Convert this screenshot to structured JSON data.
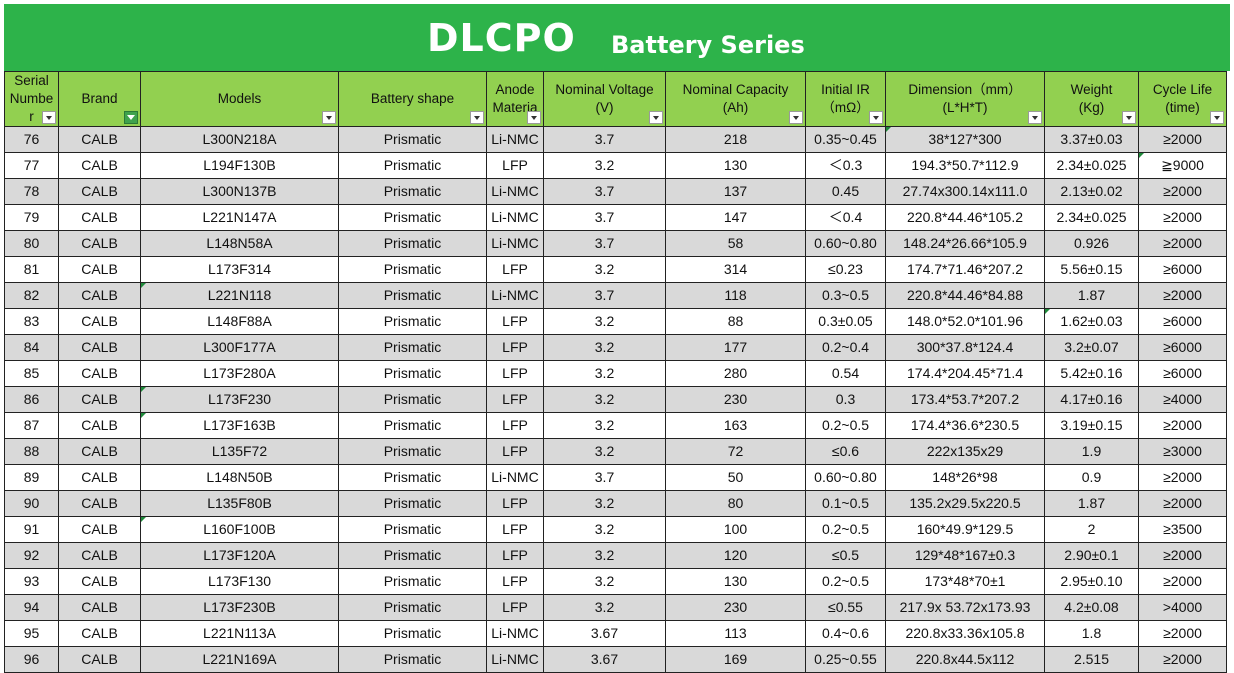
{
  "title": {
    "main": "DLCPO",
    "sub": "Battery Series"
  },
  "headers": [
    {
      "key": "serial",
      "label": "Serial Numbe r"
    },
    {
      "key": "brand",
      "label": "Brand"
    },
    {
      "key": "model",
      "label": "Models"
    },
    {
      "key": "shape",
      "label": "Battery shape"
    },
    {
      "key": "anode",
      "label": "Anode Materia"
    },
    {
      "key": "voltage",
      "label": "Nominal Voltage (V)"
    },
    {
      "key": "capacity",
      "label": "Nominal Capacity (Ah)"
    },
    {
      "key": "ir",
      "label": "Initial IR （mΩ）"
    },
    {
      "key": "dimension",
      "label": "Dimension（mm） (L*H*T)"
    },
    {
      "key": "weight",
      "label": "Weight (Kg)"
    },
    {
      "key": "cycle",
      "label": "Cycle Life (time)"
    }
  ],
  "rows": [
    [
      "76",
      "CALB",
      "L300N218A",
      "Prismatic",
      "Li-NMC",
      "3.7",
      "218",
      "0.35~0.45",
      "38*127*300",
      "3.37±0.03",
      "≥2000"
    ],
    [
      "77",
      "CALB",
      "L194F130B",
      "Prismatic",
      "LFP",
      "3.2",
      "130",
      "＜0.3",
      "194.3*50.7*112.9",
      "2.34±0.025",
      "≧9000"
    ],
    [
      "78",
      "CALB",
      "L300N137B",
      "Prismatic",
      "Li-NMC",
      "3.7",
      "137",
      "0.45",
      "27.74x300.14x111.0",
      "2.13±0.02",
      "≥2000"
    ],
    [
      "79",
      "CALB",
      "L221N147A",
      "Prismatic",
      "Li-NMC",
      "3.7",
      "147",
      "＜0.4",
      "220.8*44.46*105.2",
      "2.34±0.025",
      "≥2000"
    ],
    [
      "80",
      "CALB",
      "L148N58A",
      "Prismatic",
      "Li-NMC",
      "3.7",
      "58",
      "0.60~0.80",
      "148.24*26.66*105.9",
      "0.926",
      "≥2000"
    ],
    [
      "81",
      "CALB",
      "L173F314",
      "Prismatic",
      "LFP",
      "3.2",
      "314",
      "≤0.23",
      "174.7*71.46*207.2",
      "5.56±0.15",
      "≥6000"
    ],
    [
      "82",
      "CALB",
      "L221N118",
      "Prismatic",
      "Li-NMC",
      "3.7",
      "118",
      "0.3~0.5",
      "220.8*44.46*84.88",
      "1.87",
      "≥2000"
    ],
    [
      "83",
      "CALB",
      "L148F88A",
      "Prismatic",
      "LFP",
      "3.2",
      "88",
      "0.3±0.05",
      "148.0*52.0*101.96",
      "1.62±0.03",
      "≥6000"
    ],
    [
      "84",
      "CALB",
      "L300F177A",
      "Prismatic",
      "LFP",
      "3.2",
      "177",
      "0.2~0.4",
      "300*37.8*124.4",
      "3.2±0.07",
      "≥6000"
    ],
    [
      "85",
      "CALB",
      "L173F280A",
      "Prismatic",
      "LFP",
      "3.2",
      "280",
      "0.54",
      "174.4*204.45*71.4",
      "5.42±0.16",
      "≥6000"
    ],
    [
      "86",
      "CALB",
      "L173F230",
      "Prismatic",
      "LFP",
      "3.2",
      "230",
      "0.3",
      "173.4*53.7*207.2",
      "4.17±0.16",
      "≥4000"
    ],
    [
      "87",
      "CALB",
      "L173F163B",
      "Prismatic",
      "LFP",
      "3.2",
      "163",
      "0.2~0.5",
      "174.4*36.6*230.5",
      "3.19±0.15",
      "≥2000"
    ],
    [
      "88",
      "CALB",
      "L135F72",
      "Prismatic",
      "LFP",
      "3.2",
      "72",
      "≤0.6",
      "222x135x29",
      "1.9",
      "≥3000"
    ],
    [
      "89",
      "CALB",
      "L148N50B",
      "Prismatic",
      "Li-NMC",
      "3.7",
      "50",
      "0.60~0.80",
      "148*26*98",
      "0.9",
      "≥2000"
    ],
    [
      "90",
      "CALB",
      "L135F80B",
      "Prismatic",
      "LFP",
      "3.2",
      "80",
      "0.1~0.5",
      "135.2x29.5x220.5",
      "1.87",
      "≥2000"
    ],
    [
      "91",
      "CALB",
      "L160F100B",
      "Prismatic",
      "LFP",
      "3.2",
      "100",
      "0.2~0.5",
      "160*49.9*129.5",
      "2",
      "≥3500"
    ],
    [
      "92",
      "CALB",
      "L173F120A",
      "Prismatic",
      "LFP",
      "3.2",
      "120",
      "≤0.5",
      "129*48*167±0.3",
      "2.90±0.1",
      "≥2000"
    ],
    [
      "93",
      "CALB",
      "L173F130",
      "Prismatic",
      "LFP",
      "3.2",
      "130",
      "0.2~0.5",
      "173*48*70±1",
      "2.95±0.10",
      "≥2000"
    ],
    [
      "94",
      "CALB",
      "L173F230B",
      "Prismatic",
      "LFP",
      "3.2",
      "230",
      "≤0.55",
      "217.9x 53.72x173.93",
      "4.2±0.08",
      ">4000"
    ],
    [
      "95",
      "CALB",
      "L221N113A",
      "Prismatic",
      "Li-NMC",
      "3.67",
      "113",
      "0.4~0.6",
      "220.8x33.36x105.8",
      "1.8",
      "≥2000"
    ],
    [
      "96",
      "CALB",
      "L221N169A",
      "Prismatic",
      "Li-NMC",
      "3.67",
      "169",
      "0.25~0.55",
      "220.8x44.5x112",
      "2.515",
      "≥2000"
    ]
  ],
  "colors": {
    "title_bg": "#2db34a",
    "header_bg": "#92d050",
    "row_alt": "#d9d9d9",
    "filter_active": "#3fa34d"
  },
  "icons": {
    "dropdown": "chevron-down-icon",
    "filter_active": "filter-icon"
  }
}
